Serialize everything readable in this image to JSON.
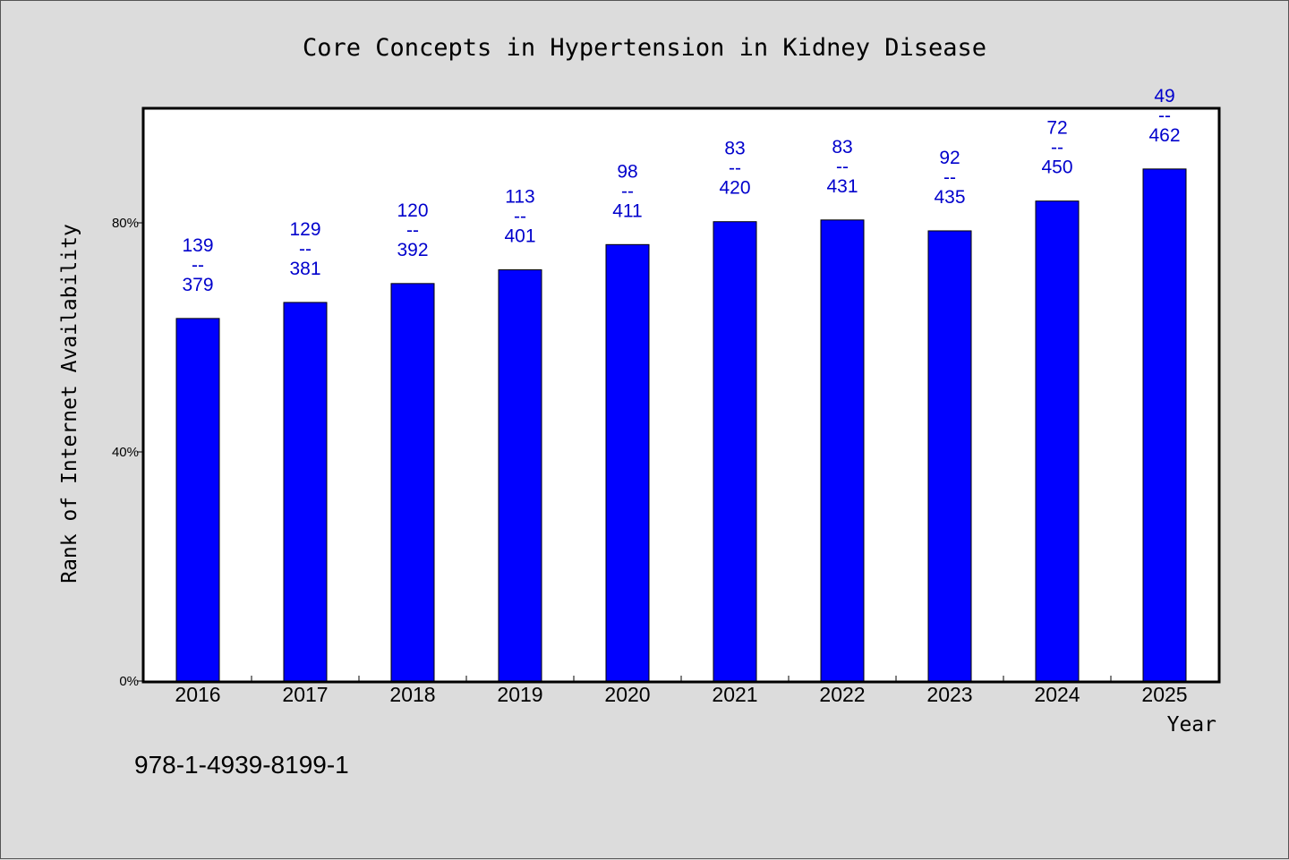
{
  "chart_data": {
    "type": "bar",
    "title": "Core Concepts in Hypertension in Kidney Disease",
    "xlabel": "Year",
    "ylabel": "Rank of Internet Availability",
    "categories": [
      "2016",
      "2017",
      "2018",
      "2019",
      "2020",
      "2021",
      "2022",
      "2023",
      "2024",
      "2025"
    ],
    "series": [
      {
        "values": [
          63.3,
          66.1,
          69.4,
          71.8,
          76.2,
          80.2,
          80.5,
          78.6,
          83.8,
          89.4
        ]
      }
    ],
    "data_labels": {
      "top": [
        "139",
        "129",
        "120",
        "113",
        "98",
        "83",
        "83",
        "92",
        "72",
        "49"
      ],
      "separator": "--",
      "bottom": [
        "379",
        "381",
        "392",
        "401",
        "411",
        "420",
        "431",
        "435",
        "450",
        "462"
      ]
    },
    "y_ticks": [
      "0%",
      "40%",
      "80%"
    ],
    "y_tick_values": [
      0,
      40,
      80
    ],
    "ylim": [
      0,
      100
    ],
    "bar_color": "#0000ff",
    "label_color": "#0000cc",
    "plot_background": "#ffffff",
    "grid": false
  },
  "footer": {
    "isbn": "978-1-4939-8199-1"
  }
}
